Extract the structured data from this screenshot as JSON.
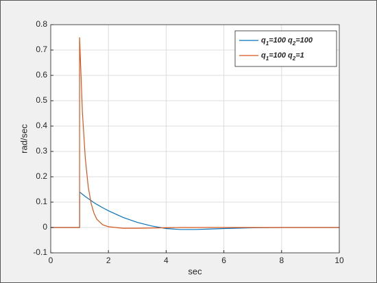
{
  "chart_data": {
    "type": "line",
    "xlabel": "sec",
    "ylabel": "rad/sec",
    "x": [
      0,
      1,
      1,
      1.1,
      1.2,
      1.3,
      1.4,
      1.5,
      1.6,
      1.8,
      2,
      2.5,
      3,
      3.5,
      4,
      4.5,
      5,
      5.5,
      6,
      7,
      8,
      9,
      10
    ],
    "series": [
      {
        "name": "q1=100 q2=100",
        "color": "#0072bd",
        "values": [
          0,
          0,
          0.14,
          0.131,
          0.122,
          0.114,
          0.106,
          0.098,
          0.091,
          0.078,
          0.066,
          0.04,
          0.02,
          0.006,
          -0.004,
          -0.008,
          -0.008,
          -0.006,
          -0.004,
          -0.001,
          0,
          0,
          0
        ]
      },
      {
        "name": "q1=100 q2=1",
        "color": "#d95319",
        "values": [
          0,
          0,
          0.75,
          0.45,
          0.27,
          0.16,
          0.095,
          0.056,
          0.032,
          0.011,
          0.003,
          -0.003,
          -0.003,
          -0.002,
          -0.001,
          0,
          0,
          0,
          0,
          0,
          0,
          0,
          0
        ]
      }
    ],
    "xlim": [
      0,
      10
    ],
    "xticks": [
      0,
      2,
      4,
      6,
      8,
      10
    ],
    "ylim": [
      -0.1,
      0.8
    ],
    "yticks": [
      -0.1,
      0,
      0.1,
      0.2,
      0.3,
      0.4,
      0.5,
      0.6,
      0.7,
      0.8
    ],
    "grid": true,
    "legend_position": "northeast"
  }
}
